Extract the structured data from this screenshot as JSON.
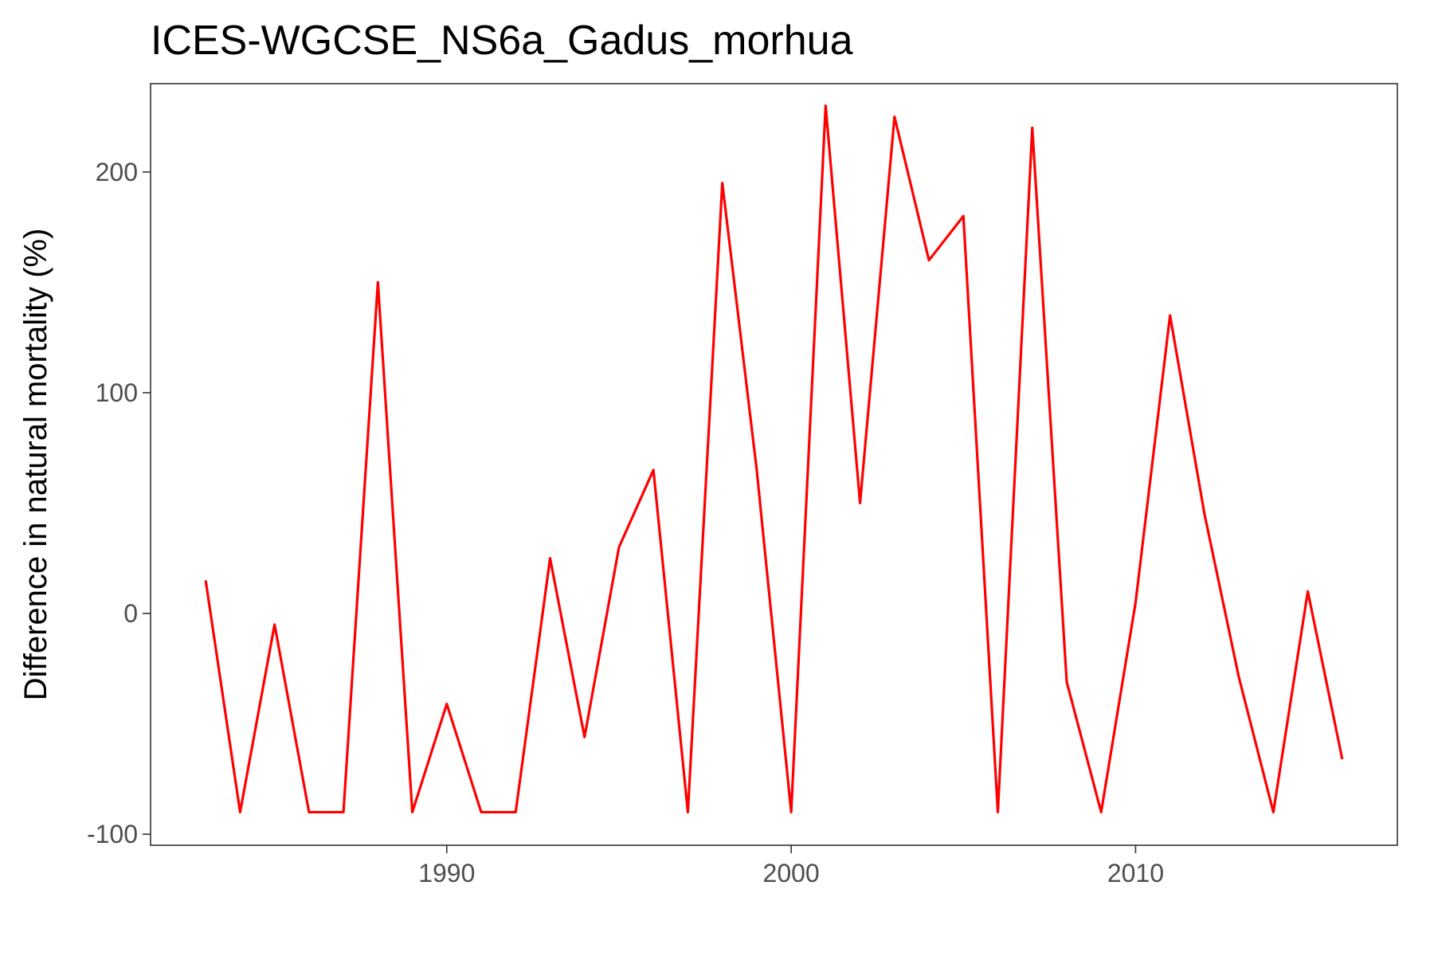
{
  "chart_data": {
    "type": "line",
    "title": "ICES-WGCSE_NS6a_Gadus_morhua",
    "xlabel": "",
    "ylabel": "Difference in natural mortality (%)",
    "xlim": [
      1981.4,
      2017.6
    ],
    "ylim": [
      -105,
      240
    ],
    "grid": false,
    "legend": "none",
    "x_ticks": [
      1990,
      2000,
      2010
    ],
    "x_tick_labels": [
      "1990",
      "2000",
      "2010"
    ],
    "y_ticks": [
      -100,
      0,
      100,
      200
    ],
    "y_tick_labels": [
      "-100",
      "0",
      "100",
      "200"
    ],
    "series": [
      {
        "color": "#ff0000",
        "x": [
          1983,
          1984,
          1985,
          1986,
          1987,
          1988,
          1989,
          1990,
          1991,
          1992,
          1993,
          1994,
          1995,
          1996,
          1997,
          1998,
          1999,
          2000,
          2001,
          2002,
          2003,
          2004,
          2005,
          2006,
          2007,
          2008,
          2009,
          2010,
          2011,
          2012,
          2013,
          2014,
          2015,
          2016
        ],
        "values": [
          15,
          -90,
          -5,
          -90,
          -90,
          150,
          -90,
          -41,
          -90,
          -90,
          25,
          -56,
          30,
          65,
          -90,
          195,
          65,
          -90,
          230,
          50,
          225,
          160,
          180,
          -90,
          220,
          -31,
          -90,
          5,
          135,
          45,
          -29,
          -90,
          10,
          -66
        ]
      }
    ]
  }
}
